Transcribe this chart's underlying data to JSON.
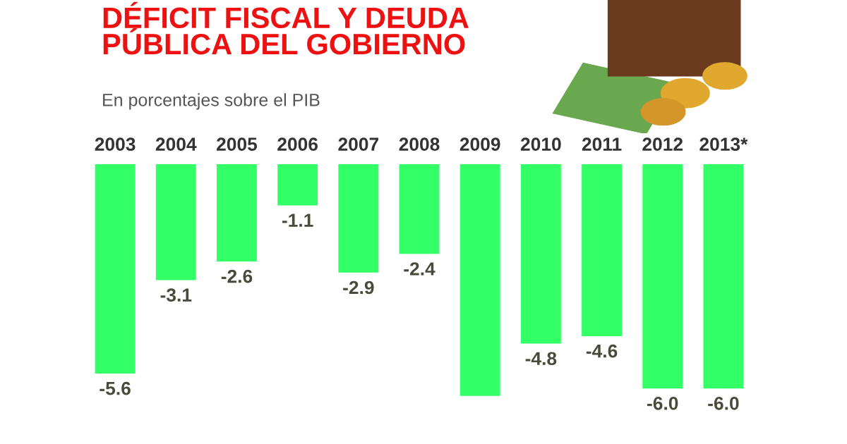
{
  "chart_data": {
    "type": "bar",
    "title": "DÉFICIT FISCAL Y DEUDA\nPÚBLICA DEL GOBIERNO",
    "subtitle": "En porcentajes sobre el PIB",
    "categories": [
      "2003",
      "2004",
      "2005",
      "2006",
      "2007",
      "2008",
      "2009",
      "2010",
      "2011",
      "2012",
      "2013*"
    ],
    "values": [
      -5.6,
      -3.1,
      -2.6,
      -1.1,
      -2.9,
      -2.4,
      -6.2,
      -4.8,
      -4.6,
      -6.0,
      -6.0
    ],
    "value_labels": [
      "-5.6",
      "-3.1",
      "-2.6",
      "-1.1",
      "-2.9",
      "-2.4",
      null,
      "-4.8",
      "-4.6",
      "-6.0",
      "-6.0"
    ],
    "color": "#33ff66",
    "tick_labels": "x",
    "grid": false,
    "legend": false
  }
}
